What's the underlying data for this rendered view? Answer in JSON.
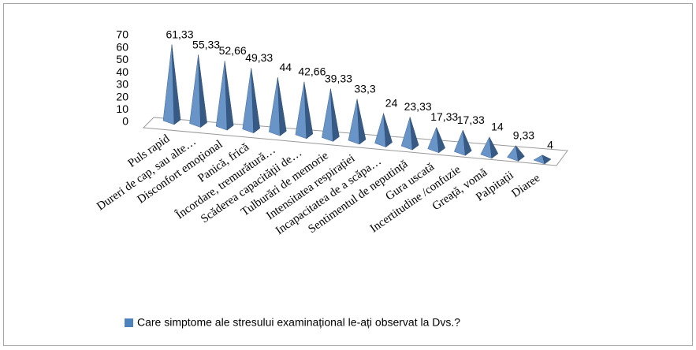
{
  "chart_data": {
    "type": "bar",
    "categories": [
      "Puls rapid",
      "Dureri de cap, sau alte…",
      "Disconfort emoțional",
      "Panică, frică",
      "Încordare, tremurătură…",
      "Scăderea capacității de…",
      "Tulburări de memorie",
      "Intensitatea respirației",
      "Incapacitatea de a scăpa…",
      "Sentimentul de neputință",
      "Gura uscată",
      "Incertitudine /confuzie",
      "Greață, vomă",
      "Palpitații",
      "Diaree"
    ],
    "series": [
      {
        "name": "Care simptome ale stresului examinațional le-ați observat la Dvs.?",
        "color": "#4f81bd",
        "values": [
          61.33,
          55.33,
          52.66,
          49.33,
          44,
          42.66,
          39.33,
          33.3,
          24,
          23.33,
          17.33,
          17.33,
          14,
          9.33,
          4
        ],
        "value_labels": [
          "61,33",
          "55,33",
          "52,66",
          "49,33",
          "44",
          "42,66",
          "39,33",
          "33,3",
          "24",
          "23,33",
          "17,33",
          "17,33",
          "14",
          "9,33",
          "4"
        ]
      }
    ],
    "ylim": [
      0,
      70
    ],
    "yticks": [
      0,
      10,
      20,
      30,
      40,
      50,
      60,
      70
    ],
    "legend": "bottom"
  }
}
